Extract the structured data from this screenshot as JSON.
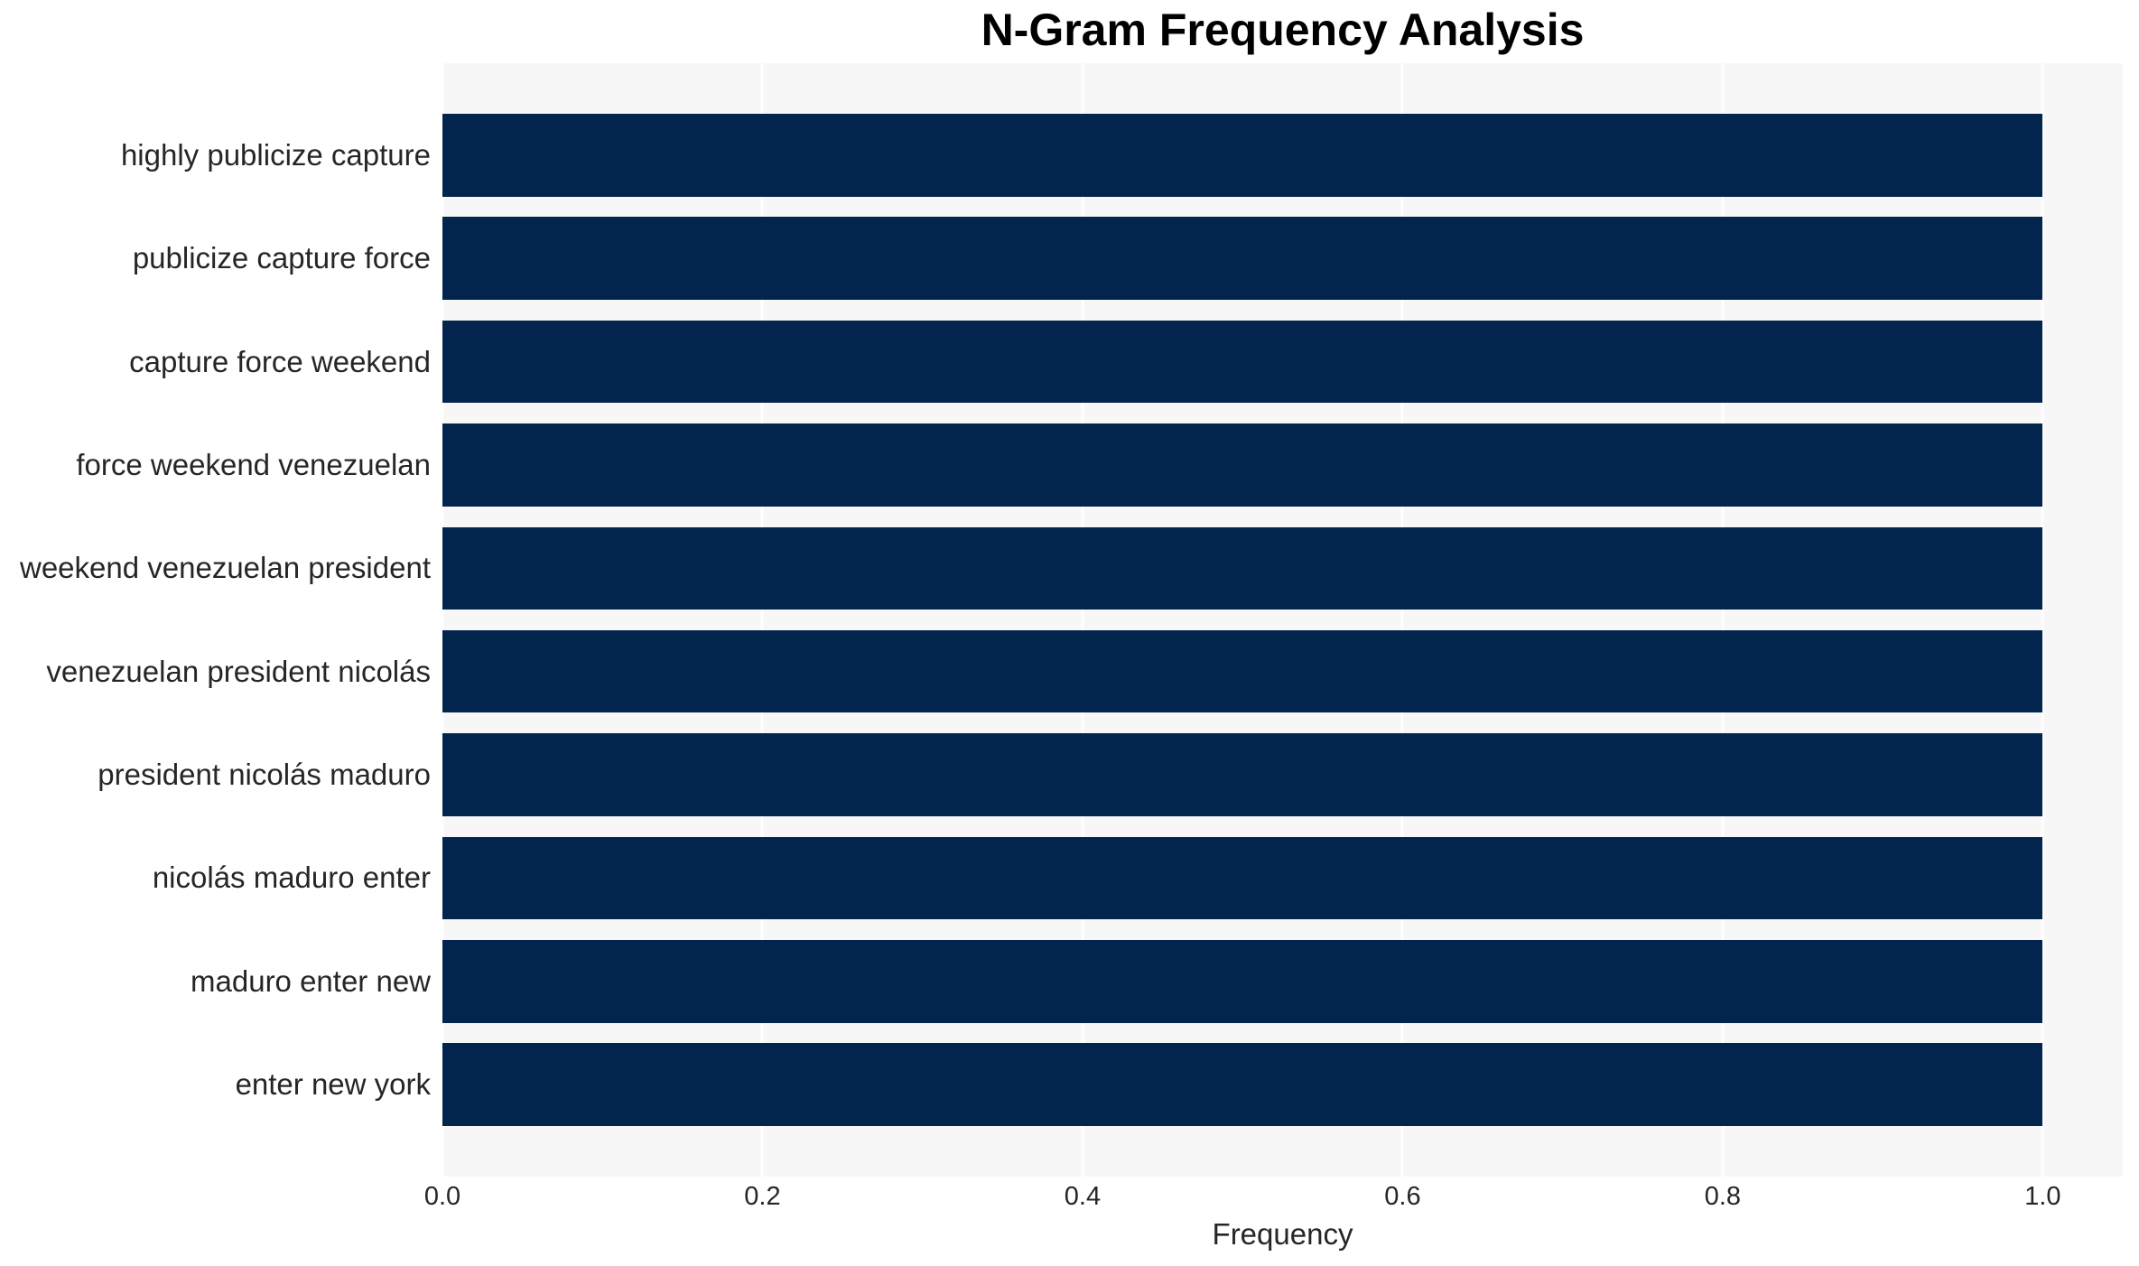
{
  "chart_data": {
    "type": "bar",
    "orientation": "horizontal",
    "title": "N-Gram Frequency Analysis",
    "xlabel": "Frequency",
    "ylabel": "",
    "categories": [
      "highly publicize capture",
      "publicize capture force",
      "capture force weekend",
      "force weekend venezuelan",
      "weekend venezuelan president",
      "venezuelan president nicolás",
      "president nicolás maduro",
      "nicolás maduro enter",
      "maduro enter new",
      "enter new york"
    ],
    "values": [
      1.0,
      1.0,
      1.0,
      1.0,
      1.0,
      1.0,
      1.0,
      1.0,
      1.0,
      1.0
    ],
    "xticks": {
      "labels": [
        "0.0",
        "0.2",
        "0.4",
        "0.6",
        "0.8",
        "1.0"
      ],
      "values": [
        0.0,
        0.2,
        0.4,
        0.6,
        0.8,
        1.0
      ]
    },
    "xlim": [
      0,
      1.05
    ],
    "grid": true,
    "legend": false,
    "bar_fraction_of_slot": 0.8,
    "category_margin": 0.05,
    "colors": {
      "bar": "#02244d",
      "plot_background": "#f7f7f7",
      "gridline": "#ffffff",
      "axis_text": "#262626",
      "title_text": "#000000",
      "figure_background": "#ffffff"
    }
  }
}
